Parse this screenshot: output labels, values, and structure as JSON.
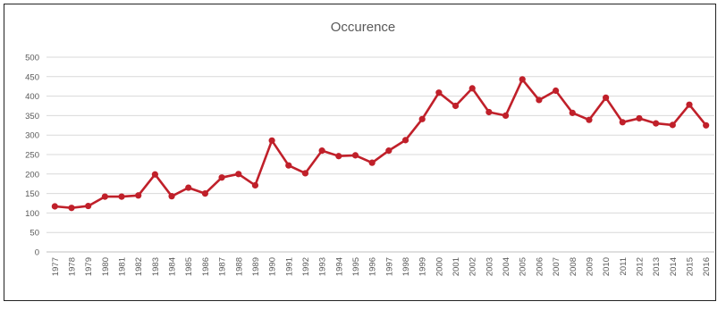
{
  "chart_data": {
    "type": "line",
    "title": "Occurence",
    "xlabel": "",
    "ylabel": "",
    "ylim": [
      0,
      500
    ],
    "yticks": [
      0,
      50,
      100,
      150,
      200,
      250,
      300,
      350,
      400,
      450,
      500
    ],
    "grid": true,
    "legend": "none",
    "categories": [
      "1977",
      "1978",
      "1979",
      "1980",
      "1981",
      "1982",
      "1983",
      "1984",
      "1985",
      "1986",
      "1987",
      "1988",
      "1989",
      "1990",
      "1991",
      "1992",
      "1993",
      "1994",
      "1995",
      "1996",
      "1997",
      "1998",
      "1999",
      "2000",
      "2001",
      "2002",
      "2003",
      "2004",
      "2005",
      "2006",
      "2007",
      "2008",
      "2009",
      "2010",
      "2011",
      "2012",
      "2013",
      "2014",
      "2015",
      "2016"
    ],
    "series": [
      {
        "values": [
          117,
          113,
          118,
          142,
          142,
          145,
          199,
          143,
          165,
          150,
          191,
          200,
          171,
          286,
          222,
          202,
          260,
          246,
          248,
          229,
          260,
          287,
          341,
          409,
          375,
          420,
          359,
          350,
          443,
          390,
          414,
          357,
          339,
          396,
          333,
          343,
          330,
          326,
          378,
          325
        ],
        "color": "#c0202a"
      }
    ],
    "colors": {
      "line": "#c0202a",
      "grid": "#d9d9d9",
      "text": "#595959"
    }
  }
}
